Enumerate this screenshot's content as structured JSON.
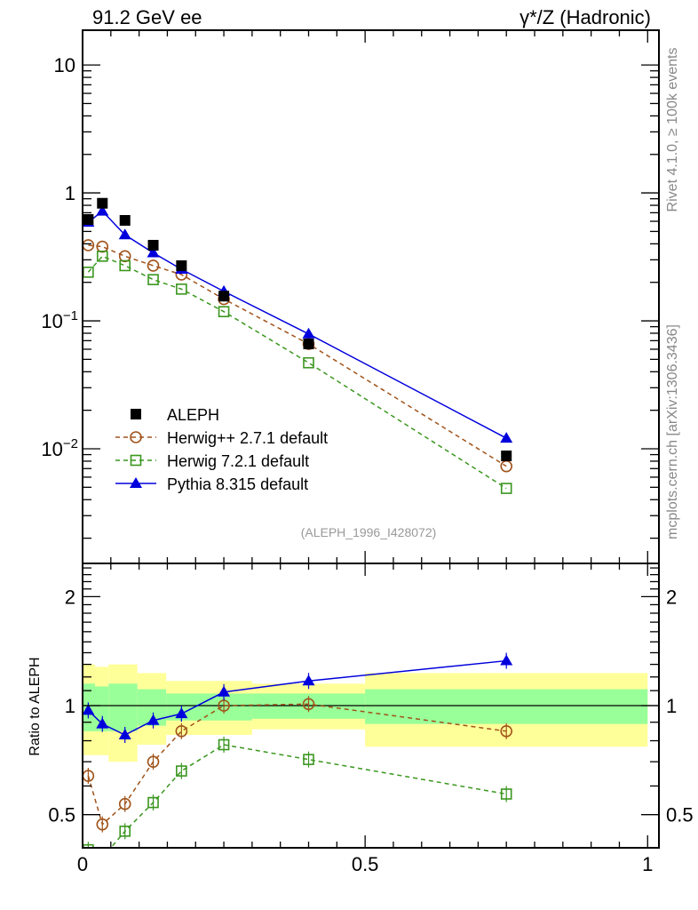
{
  "chart_data": [
    {
      "panel": "main",
      "type": "scatter",
      "title_left": "91.2 GeV ee",
      "title_right": "γ*/Z (Hadronic)",
      "xlabel": "",
      "ylabel": "",
      "yscale": "log",
      "xlim": [
        0,
        1.02
      ],
      "ylim": [
        0.00127,
        18.7
      ],
      "y_tick_labels": [
        {
          "value": 10,
          "base": "10",
          "exp": ""
        },
        {
          "value": 1,
          "base": "1",
          "exp": ""
        },
        {
          "value": 0.1,
          "base": "10",
          "exp": "−1"
        },
        {
          "value": 0.01,
          "base": "10",
          "exp": "−2"
        }
      ],
      "x": [
        0.01,
        0.035,
        0.075,
        0.125,
        0.175,
        0.25,
        0.4,
        0.75
      ],
      "series": [
        {
          "name": "ALEPH",
          "style": "data",
          "color": "#000000",
          "marker": "square-filled",
          "values": [
            0.62,
            0.83,
            0.61,
            0.39,
            0.27,
            0.156,
            0.066,
            0.0088
          ]
        },
        {
          "name": "Herwig++ 2.7.1 default",
          "style": "dashed",
          "color": "#a0531a",
          "marker": "circle-open",
          "values": [
            0.39,
            0.38,
            0.32,
            0.27,
            0.23,
            0.148,
            0.066,
            0.0073
          ]
        },
        {
          "name": "Herwig 7.2.1 default",
          "style": "dashed",
          "color": "#3a961e",
          "marker": "square-open",
          "values": [
            0.24,
            0.32,
            0.27,
            0.21,
            0.177,
            0.118,
            0.047,
            0.0049
          ]
        },
        {
          "name": "Pythia 8.315 default",
          "style": "solid",
          "color": "#0000dd",
          "marker": "triangle-filled",
          "values": [
            0.59,
            0.72,
            0.47,
            0.34,
            0.253,
            0.17,
            0.079,
            0.0121
          ]
        }
      ],
      "legend_position": "lower-left",
      "annotation": "(ALEPH_1996_I428072)"
    },
    {
      "panel": "ratio",
      "type": "line",
      "ylabel": "Ratio to ALEPH",
      "yscale": "log",
      "xlim": [
        0,
        1.02
      ],
      "ylim": [
        0.405,
        2.47
      ],
      "x_tick_labels": [
        {
          "value": 0,
          "label": "0"
        },
        {
          "value": 0.5,
          "label": "0.5"
        },
        {
          "value": 1,
          "label": "1"
        }
      ],
      "y_tick_labels": [
        {
          "value": 2,
          "label": "2"
        },
        {
          "value": 1,
          "label": "1"
        },
        {
          "value": 0.5,
          "label": "0.5"
        }
      ],
      "bands": {
        "bin_edges": [
          0,
          0.022,
          0.046,
          0.097,
          0.148,
          0.3,
          0.5,
          1.0
        ],
        "yellow_colour": "#ffff99",
        "green_colour": "#99ff99",
        "yellow_low": [
          0.73,
          0.73,
          0.7,
          0.78,
          0.83,
          0.86,
          0.77
        ],
        "yellow_high": [
          1.3,
          1.28,
          1.3,
          1.23,
          1.17,
          1.15,
          1.23
        ],
        "green_low": [
          0.85,
          0.85,
          0.85,
          0.88,
          0.91,
          0.92,
          0.89
        ],
        "green_high": [
          1.15,
          1.13,
          1.15,
          1.11,
          1.08,
          1.08,
          1.11
        ]
      },
      "x": [
        0.01,
        0.035,
        0.075,
        0.125,
        0.175,
        0.25,
        0.4,
        0.75
      ],
      "series": [
        {
          "name": "Herwig++ 2.7.1 default",
          "values": [
            0.64,
            0.47,
            0.535,
            0.7,
            0.85,
            1.0,
            1.01,
            0.85
          ]
        },
        {
          "name": "Herwig 7.2.1 default",
          "values": [
            0.4,
            0.38,
            0.45,
            0.54,
            0.66,
            0.78,
            0.71,
            0.57
          ]
        },
        {
          "name": "Pythia 8.315 default",
          "values": [
            0.97,
            0.89,
            0.83,
            0.91,
            0.95,
            1.09,
            1.17,
            1.33
          ]
        }
      ]
    }
  ],
  "side_labels": {
    "rivet": "Rivet 4.1.0, ≥ 100k events",
    "mcplots": "mcplots.cern.ch [arXiv:1306.3436]"
  }
}
